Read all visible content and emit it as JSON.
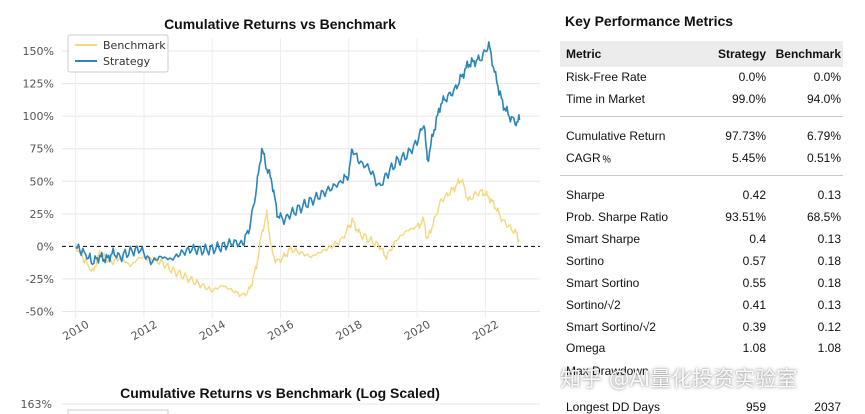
{
  "chart_data": [
    {
      "type": "line",
      "title": "Cumulative Returns vs Benchmark",
      "xlabel": "",
      "ylabel": "",
      "x_ticks": [
        "2010",
        "2012",
        "2014",
        "2016",
        "2018",
        "2020",
        "2022"
      ],
      "y_ticks": [
        "150%",
        "125%",
        "100%",
        "75%",
        "50%",
        "25%",
        "0%",
        "-25%",
        "-50%"
      ],
      "xlim": [
        2009.6,
        2023.6
      ],
      "ylim": [
        -55,
        160
      ],
      "grid": true,
      "reference_line": 0,
      "legend_position": "top-left",
      "series": [
        {
          "name": "Benchmark",
          "color": "#f5d77e",
          "x": [
            2010.0,
            2010.25,
            2010.5,
            2010.7,
            2010.9,
            2011.1,
            2011.3,
            2011.6,
            2011.9,
            2012.2,
            2012.5,
            2012.8,
            2013.1,
            2013.4,
            2013.7,
            2014.0,
            2014.3,
            2014.6,
            2014.9,
            2015.1,
            2015.3,
            2015.45,
            2015.6,
            2015.75,
            2015.9,
            2016.1,
            2016.3,
            2016.6,
            2016.9,
            2017.2,
            2017.5,
            2017.8,
            2018.0,
            2018.1,
            2018.3,
            2018.6,
            2018.9,
            2019.1,
            2019.4,
            2019.7,
            2020.0,
            2020.2,
            2020.3,
            2020.5,
            2020.7,
            2020.9,
            2021.1,
            2021.3,
            2021.5,
            2021.7,
            2021.9,
            2022.1,
            2022.3,
            2022.5,
            2022.7,
            2022.9,
            2023.0
          ],
          "values": [
            0,
            -10,
            -20,
            -5,
            -10,
            -12,
            -8,
            -15,
            -8,
            -10,
            -12,
            -18,
            -22,
            -26,
            -30,
            -34,
            -30,
            -34,
            -38,
            -33,
            -15,
            10,
            25,
            -5,
            -12,
            -8,
            -2,
            -5,
            -8,
            -4,
            0,
            5,
            15,
            20,
            10,
            5,
            0,
            -8,
            5,
            12,
            15,
            20,
            5,
            20,
            35,
            40,
            45,
            52,
            35,
            40,
            42,
            38,
            30,
            20,
            15,
            10,
            5
          ]
        },
        {
          "name": "Strategy",
          "color": "#2b86b7",
          "x": [
            2010.0,
            2010.25,
            2010.5,
            2010.7,
            2010.9,
            2011.1,
            2011.3,
            2011.6,
            2011.9,
            2012.2,
            2012.5,
            2012.8,
            2013.1,
            2013.4,
            2013.7,
            2014.0,
            2014.3,
            2014.6,
            2014.9,
            2015.1,
            2015.3,
            2015.45,
            2015.6,
            2015.75,
            2015.9,
            2016.1,
            2016.3,
            2016.6,
            2016.9,
            2017.2,
            2017.5,
            2017.8,
            2018.0,
            2018.1,
            2018.3,
            2018.6,
            2018.9,
            2019.1,
            2019.4,
            2019.7,
            2020.0,
            2020.2,
            2020.3,
            2020.5,
            2020.7,
            2020.9,
            2021.1,
            2021.3,
            2021.5,
            2021.7,
            2021.9,
            2022.1,
            2022.3,
            2022.5,
            2022.7,
            2022.9,
            2023.0
          ],
          "values": [
            0,
            -5,
            -12,
            -8,
            -10,
            -5,
            -8,
            -4,
            -2,
            -12,
            -8,
            -10,
            -5,
            -2,
            -3,
            -2,
            0,
            3,
            2,
            15,
            45,
            75,
            60,
            50,
            25,
            20,
            25,
            30,
            35,
            40,
            45,
            50,
            55,
            75,
            65,
            60,
            45,
            55,
            65,
            70,
            80,
            95,
            65,
            90,
            110,
            115,
            120,
            130,
            140,
            142,
            145,
            155,
            130,
            110,
            100,
            95,
            97
          ]
        }
      ]
    },
    {
      "type": "line",
      "title": "Cumulative Returns vs Benchmark (Log Scaled)",
      "y_ticks": [
        "163%"
      ]
    }
  ],
  "metrics_panel": {
    "title": "Key Performance Metrics",
    "headers": {
      "metric": "Metric",
      "strategy": "Strategy",
      "benchmark": "Benchmark"
    },
    "rows": [
      {
        "metric": "Risk-Free Rate",
        "strategy": "0.0%",
        "benchmark": "0.0%"
      },
      {
        "metric": "Time in Market",
        "strategy": "99.0%",
        "benchmark": "94.0%"
      },
      {
        "metric": "Cumulative Return",
        "strategy": "97.73%",
        "benchmark": "6.79%"
      },
      {
        "metric": "CAGR﹪",
        "strategy": "5.45%",
        "benchmark": "0.51%"
      },
      {
        "metric": "Sharpe",
        "strategy": "0.42",
        "benchmark": "0.13"
      },
      {
        "metric": "Prob. Sharpe Ratio",
        "strategy": "93.51%",
        "benchmark": "68.5%"
      },
      {
        "metric": "Smart Sharpe",
        "strategy": "0.4",
        "benchmark": "0.13"
      },
      {
        "metric": "Sortino",
        "strategy": "0.57",
        "benchmark": "0.18"
      },
      {
        "metric": "Smart Sortino",
        "strategy": "0.55",
        "benchmark": "0.18"
      },
      {
        "metric": "Sortino/√2",
        "strategy": "0.41",
        "benchmark": "0.13"
      },
      {
        "metric": "Smart Sortino/√2",
        "strategy": "0.39",
        "benchmark": "0.12"
      },
      {
        "metric": "Omega",
        "strategy": "1.08",
        "benchmark": "1.08"
      },
      {
        "metric": "Max Drawdown",
        "strategy": "",
        "benchmark": ""
      },
      {
        "metric": "Longest DD Days",
        "strategy": "959",
        "benchmark": "2037"
      }
    ]
  },
  "watermark": "知乎 @AI量化投资实验室"
}
